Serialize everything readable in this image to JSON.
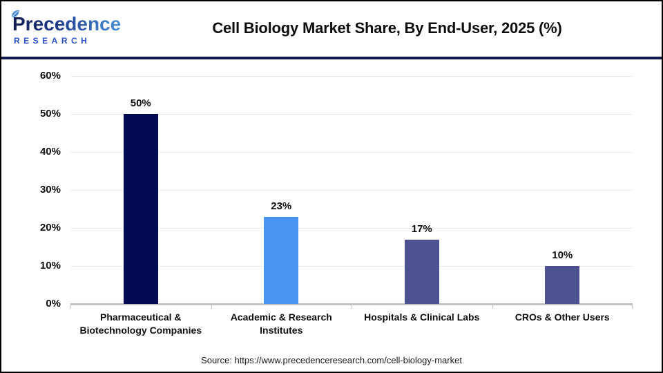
{
  "header": {
    "logo": {
      "wordmark": "Precedence",
      "subtext": "RESEARCH"
    },
    "title": "Cell Biology Market Share, By End-User, 2025 (%)"
  },
  "footer": {
    "source": "Source: https://www.precedenceresearch.com/cell-biology-market"
  },
  "icons": {
    "logo_leaf": "leaf-icon"
  },
  "colors": {
    "divider": "#131b4e",
    "gridline": "#ebebeb",
    "axis": "#c2c2c2",
    "logo_subtext": "#2b4ecb",
    "bar_navy": "#020b52",
    "bar_blue": "#4a94f1",
    "bar_indigo": "#4d5390"
  },
  "chart_data": {
    "type": "bar",
    "title": "Cell Biology Market Share, By End-User, 2025 (%)",
    "categories": [
      "Pharmaceutical & Biotechnology Companies",
      "Academic & Research Institutes",
      "Hospitals & Clinical Labs",
      "CROs & Other Users"
    ],
    "values": [
      50,
      23,
      17,
      10
    ],
    "value_labels": [
      "50%",
      "23%",
      "17%",
      "10%"
    ],
    "bar_colors": [
      "#020b52",
      "#4a94f1",
      "#4d5390",
      "#4d5390"
    ],
    "ylim": [
      0,
      60
    ],
    "y_tick_step": 10,
    "y_tick_labels": [
      "0%",
      "10%",
      "20%",
      "30%",
      "40%",
      "50%",
      "60%"
    ],
    "grid": true,
    "legend": "none",
    "xlabel": "",
    "ylabel": ""
  }
}
